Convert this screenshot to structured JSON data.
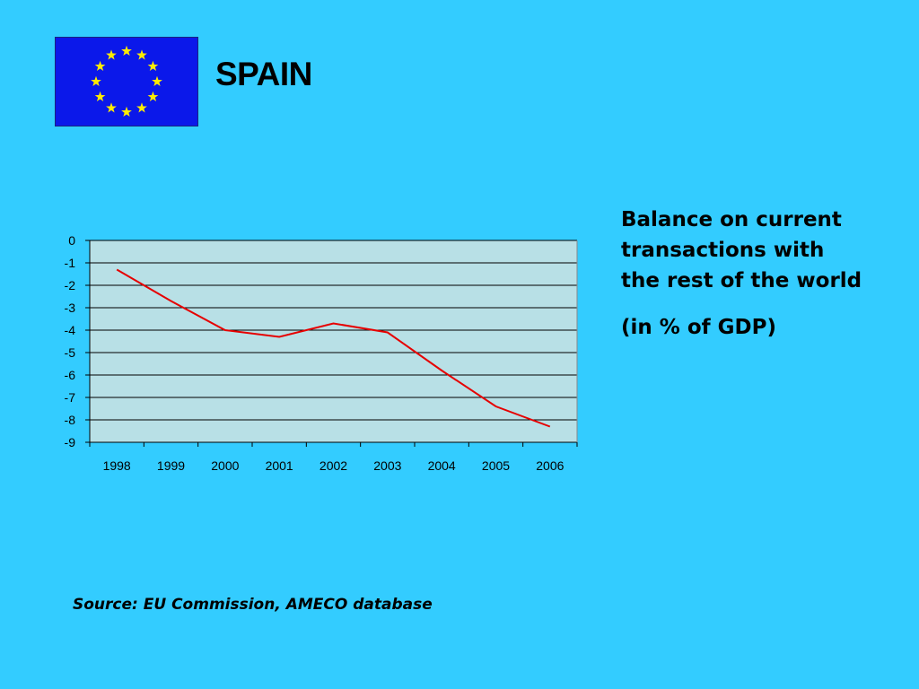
{
  "slide": {
    "title": "SPAIN",
    "flag_icon": "eu-flag-icon",
    "description_lines": [
      "Balance on current",
      "transactions with",
      "the rest of the world"
    ],
    "unit_note": "(in % of GDP)",
    "source": "Source: EU Commission, AMECO database"
  },
  "colors": {
    "background": "#33ccff",
    "plot_area": "#b8e0e6",
    "line": "#e60000",
    "flag_blue": "#0b18ea",
    "flag_star": "#ffec00"
  },
  "chart_data": {
    "type": "line",
    "categories": [
      "1998",
      "1999",
      "2000",
      "2001",
      "2002",
      "2003",
      "2004",
      "2005",
      "2006"
    ],
    "series": [
      {
        "values": [
          -1.3,
          -2.7,
          -4.0,
          -4.3,
          -3.7,
          -4.1,
          -5.8,
          -7.4,
          -8.3
        ]
      }
    ],
    "yticks": [
      "0",
      "-1",
      "-2",
      "-3",
      "-4",
      "-5",
      "-6",
      "-7",
      "-8",
      "-9"
    ],
    "ylim": [
      -9,
      0
    ],
    "grid": true,
    "legend": "none"
  }
}
